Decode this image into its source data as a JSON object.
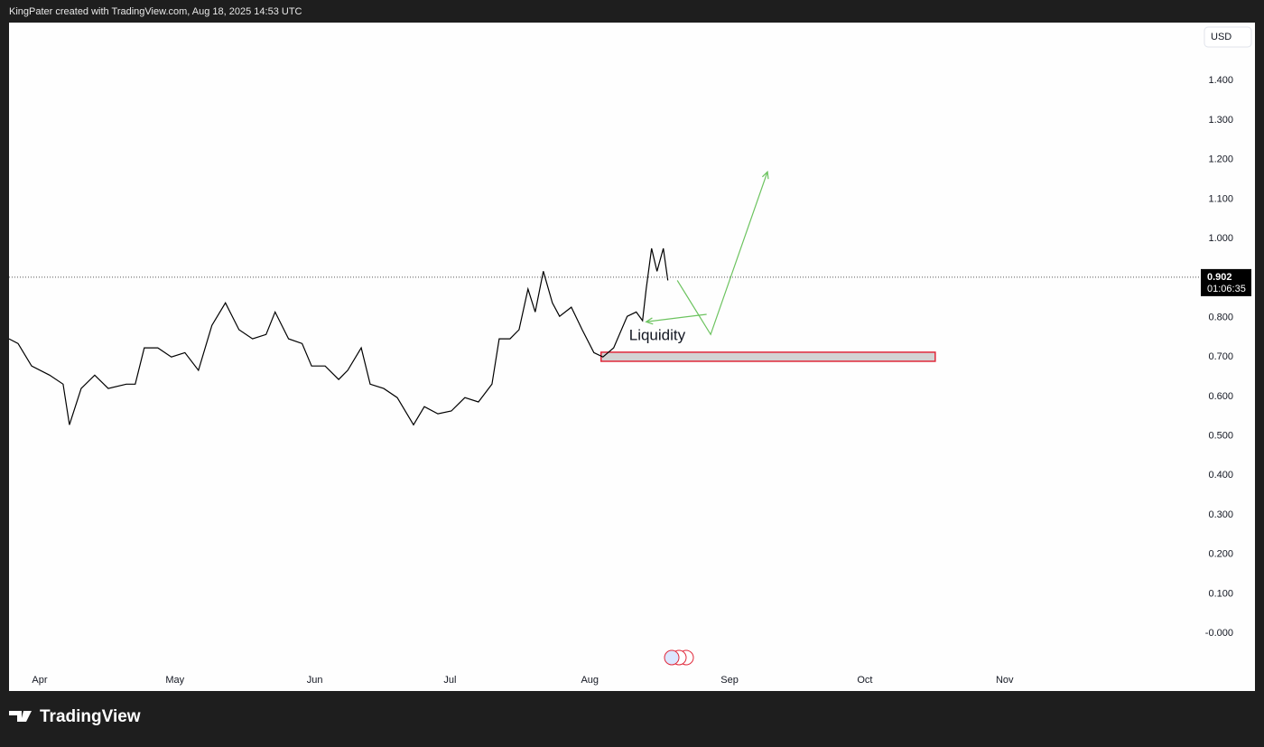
{
  "header": "KingPater created with TradingView.com, Aug 18, 2025 14:53 UTC",
  "brand": "TradingView",
  "chart_data": {
    "type": "line",
    "currency": "USD",
    "series": [
      {
        "color": "#000000",
        "x": [
          -6.8,
          -4.8,
          -1.8,
          2.2,
          5.2,
          6.6,
          9.2,
          12.2,
          15.2,
          19.2,
          21.2,
          23.2,
          26.2,
          29.2,
          32.2,
          35.2,
          38.2,
          41.2,
          44.2,
          47.2,
          50.2,
          52.2,
          55.2,
          58.2,
          60.3,
          63.3,
          66.3,
          68.3,
          71.3,
          73.3,
          76.3,
          79.3,
          82.9,
          85.3,
          88.3,
          91.3,
          94.3,
          97.3,
          100.3,
          101.9,
          104.3,
          106.3,
          108.3,
          109.9,
          111.7,
          113.7,
          115.3,
          117.9,
          120.3,
          122.9,
          124.9,
          127.3,
          130.3,
          132.3,
          133.7,
          134.5,
          135.7,
          136.9,
          138.3,
          139.3
        ],
        "values": [
          0.746,
          0.734,
          0.677,
          0.654,
          0.631,
          0.528,
          0.62,
          0.654,
          0.62,
          0.631,
          0.631,
          0.723,
          0.723,
          0.7,
          0.711,
          0.666,
          0.78,
          0.837,
          0.769,
          0.746,
          0.757,
          0.814,
          0.746,
          0.734,
          0.677,
          0.677,
          0.643,
          0.666,
          0.723,
          0.631,
          0.62,
          0.597,
          0.528,
          0.574,
          0.556,
          0.563,
          0.597,
          0.586,
          0.631,
          0.746,
          0.746,
          0.769,
          0.872,
          0.814,
          0.917,
          0.837,
          0.803,
          0.826,
          0.769,
          0.711,
          0.7,
          0.723,
          0.803,
          0.814,
          0.792,
          0.872,
          0.975,
          0.917,
          0.975,
          0.894
        ]
      }
    ],
    "last_price": 0.902,
    "countdown": "01:06:35",
    "xlim": [
      -6.8,
      257.5
    ],
    "xticks": [
      {
        "value": 0,
        "label": "Apr"
      },
      {
        "value": 30,
        "label": "May"
      },
      {
        "value": 61,
        "label": "Jun"
      },
      {
        "value": 91,
        "label": "Jul"
      },
      {
        "value": 122,
        "label": "Aug"
      },
      {
        "value": 153,
        "label": "Sep"
      },
      {
        "value": 183,
        "label": "Oct"
      },
      {
        "value": 214,
        "label": "Nov"
      }
    ],
    "ylim": [
      -0.089,
      1.547
    ],
    "yticks": [
      {
        "value": 1.4,
        "label": "1.400"
      },
      {
        "value": 1.3,
        "label": "1.300"
      },
      {
        "value": 1.2,
        "label": "1.200"
      },
      {
        "value": 1.1,
        "label": "1.100"
      },
      {
        "value": 1.0,
        "label": "1.000"
      },
      {
        "value": 0.8,
        "label": "0.800"
      },
      {
        "value": 0.7,
        "label": "0.700"
      },
      {
        "value": 0.6,
        "label": "0.600"
      },
      {
        "value": 0.5,
        "label": "0.500"
      },
      {
        "value": 0.4,
        "label": "0.400"
      },
      {
        "value": 0.3,
        "label": "0.300"
      },
      {
        "value": 0.2,
        "label": "0.200"
      },
      {
        "value": 0.1,
        "label": "0.100"
      },
      {
        "value": 0,
        "label": "-0.000"
      }
    ],
    "grid": false,
    "zone": {
      "label": "Liquidity",
      "x": [
        124.5,
        198.6
      ],
      "y": [
        0.689,
        0.712
      ],
      "color": "#e0283a"
    },
    "projection": {
      "color": "#6cc35f",
      "x": [
        141.4,
        148.8,
        161.4
      ],
      "y": [
        0.894,
        0.757,
        1.169
      ]
    },
    "pointer": {
      "color": "#6cc35f",
      "x": [
        147.9,
        134.5
      ],
      "y": [
        0.808,
        0.789
      ]
    }
  }
}
